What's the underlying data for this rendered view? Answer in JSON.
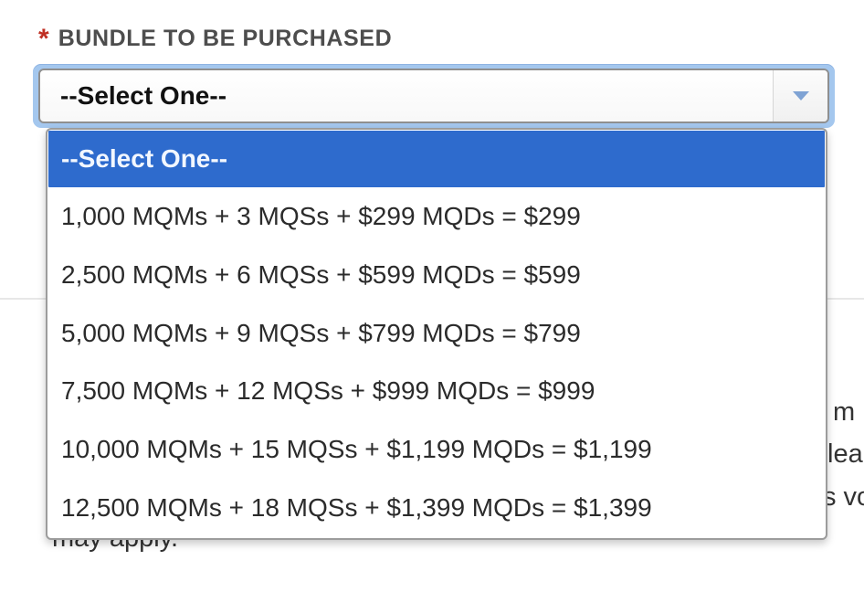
{
  "background": {
    "line1_fragment": "m",
    "line2_fragment": "lea",
    "line3_fragment": "s vo",
    "line4_fragment": "may apply."
  },
  "form": {
    "required_marker": "*",
    "label": "BUNDLE TO BE PURCHASED",
    "select": {
      "value": "--Select One--",
      "icon": "caret-down-icon"
    },
    "dropdown": {
      "highlighted_index": 0,
      "options": [
        "--Select One--",
        "1,000 MQMs + 3 MQSs + $299 MQDs = $299",
        "2,500 MQMs + 6 MQSs + $599 MQDs = $599",
        "5,000 MQMs + 9 MQSs + $799 MQDs = $799",
        "7,500 MQMs + 12 MQSs + $999 MQDs = $999",
        "10,000 MQMs + 15 MQSs + $1,199 MQDs = $1,199",
        "12,500 MQMs + 18 MQSs + $1,399 MQDs = $1,399"
      ]
    }
  },
  "colors": {
    "highlight_blue": "#2e6bcd",
    "focus_ring_blue": "#a4c7ee",
    "required_red": "#bf2f23",
    "label_gray": "#4d4d4d",
    "option_text": "#2b2b2b",
    "caret_blue": "#7fa3d4",
    "panel_border": "#9c9c9c",
    "divider_gray": "#e7e7e7"
  }
}
